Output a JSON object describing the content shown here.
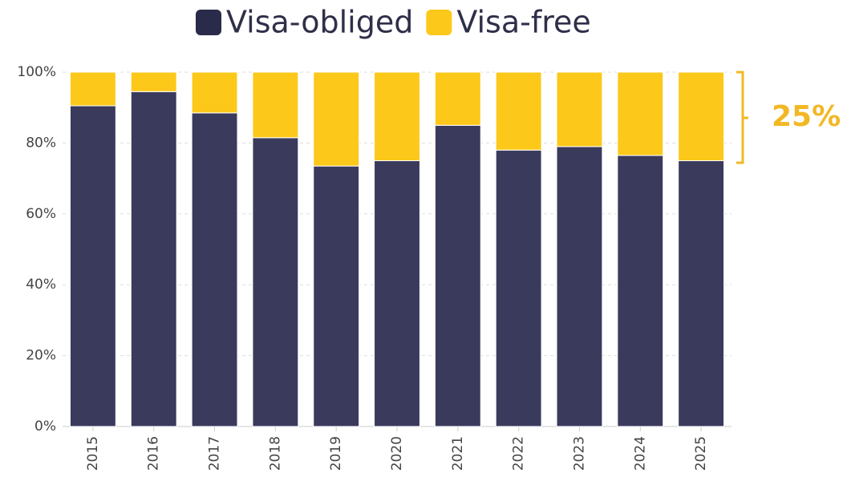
{
  "chart_data": {
    "type": "stacked_bar",
    "categories": [
      "2015",
      "2016",
      "2017",
      "2018",
      "2019",
      "2020",
      "2021",
      "2022",
      "2023",
      "2024",
      "2025"
    ],
    "series": [
      {
        "name": "Visa-obliged",
        "color": "#3a3a5c",
        "values": [
          90.5,
          94.5,
          88.5,
          81.5,
          73.5,
          75,
          85,
          78,
          79,
          76.5,
          75
        ]
      },
      {
        "name": "Visa-free",
        "color": "#fcc81a",
        "values": [
          9.5,
          5.5,
          11.5,
          18.5,
          26.5,
          25,
          15,
          22,
          21,
          23.5,
          25
        ]
      }
    ],
    "ylim": [
      0,
      100
    ],
    "yticks": [
      {
        "value": 0,
        "label": "0%"
      },
      {
        "value": 20,
        "label": "20%"
      },
      {
        "value": 40,
        "label": "40%"
      },
      {
        "value": 60,
        "label": "60%"
      },
      {
        "value": 80,
        "label": "80%"
      },
      {
        "value": 100,
        "label": "100%"
      }
    ],
    "grid": true,
    "legend": "top",
    "annotation": "25%"
  }
}
